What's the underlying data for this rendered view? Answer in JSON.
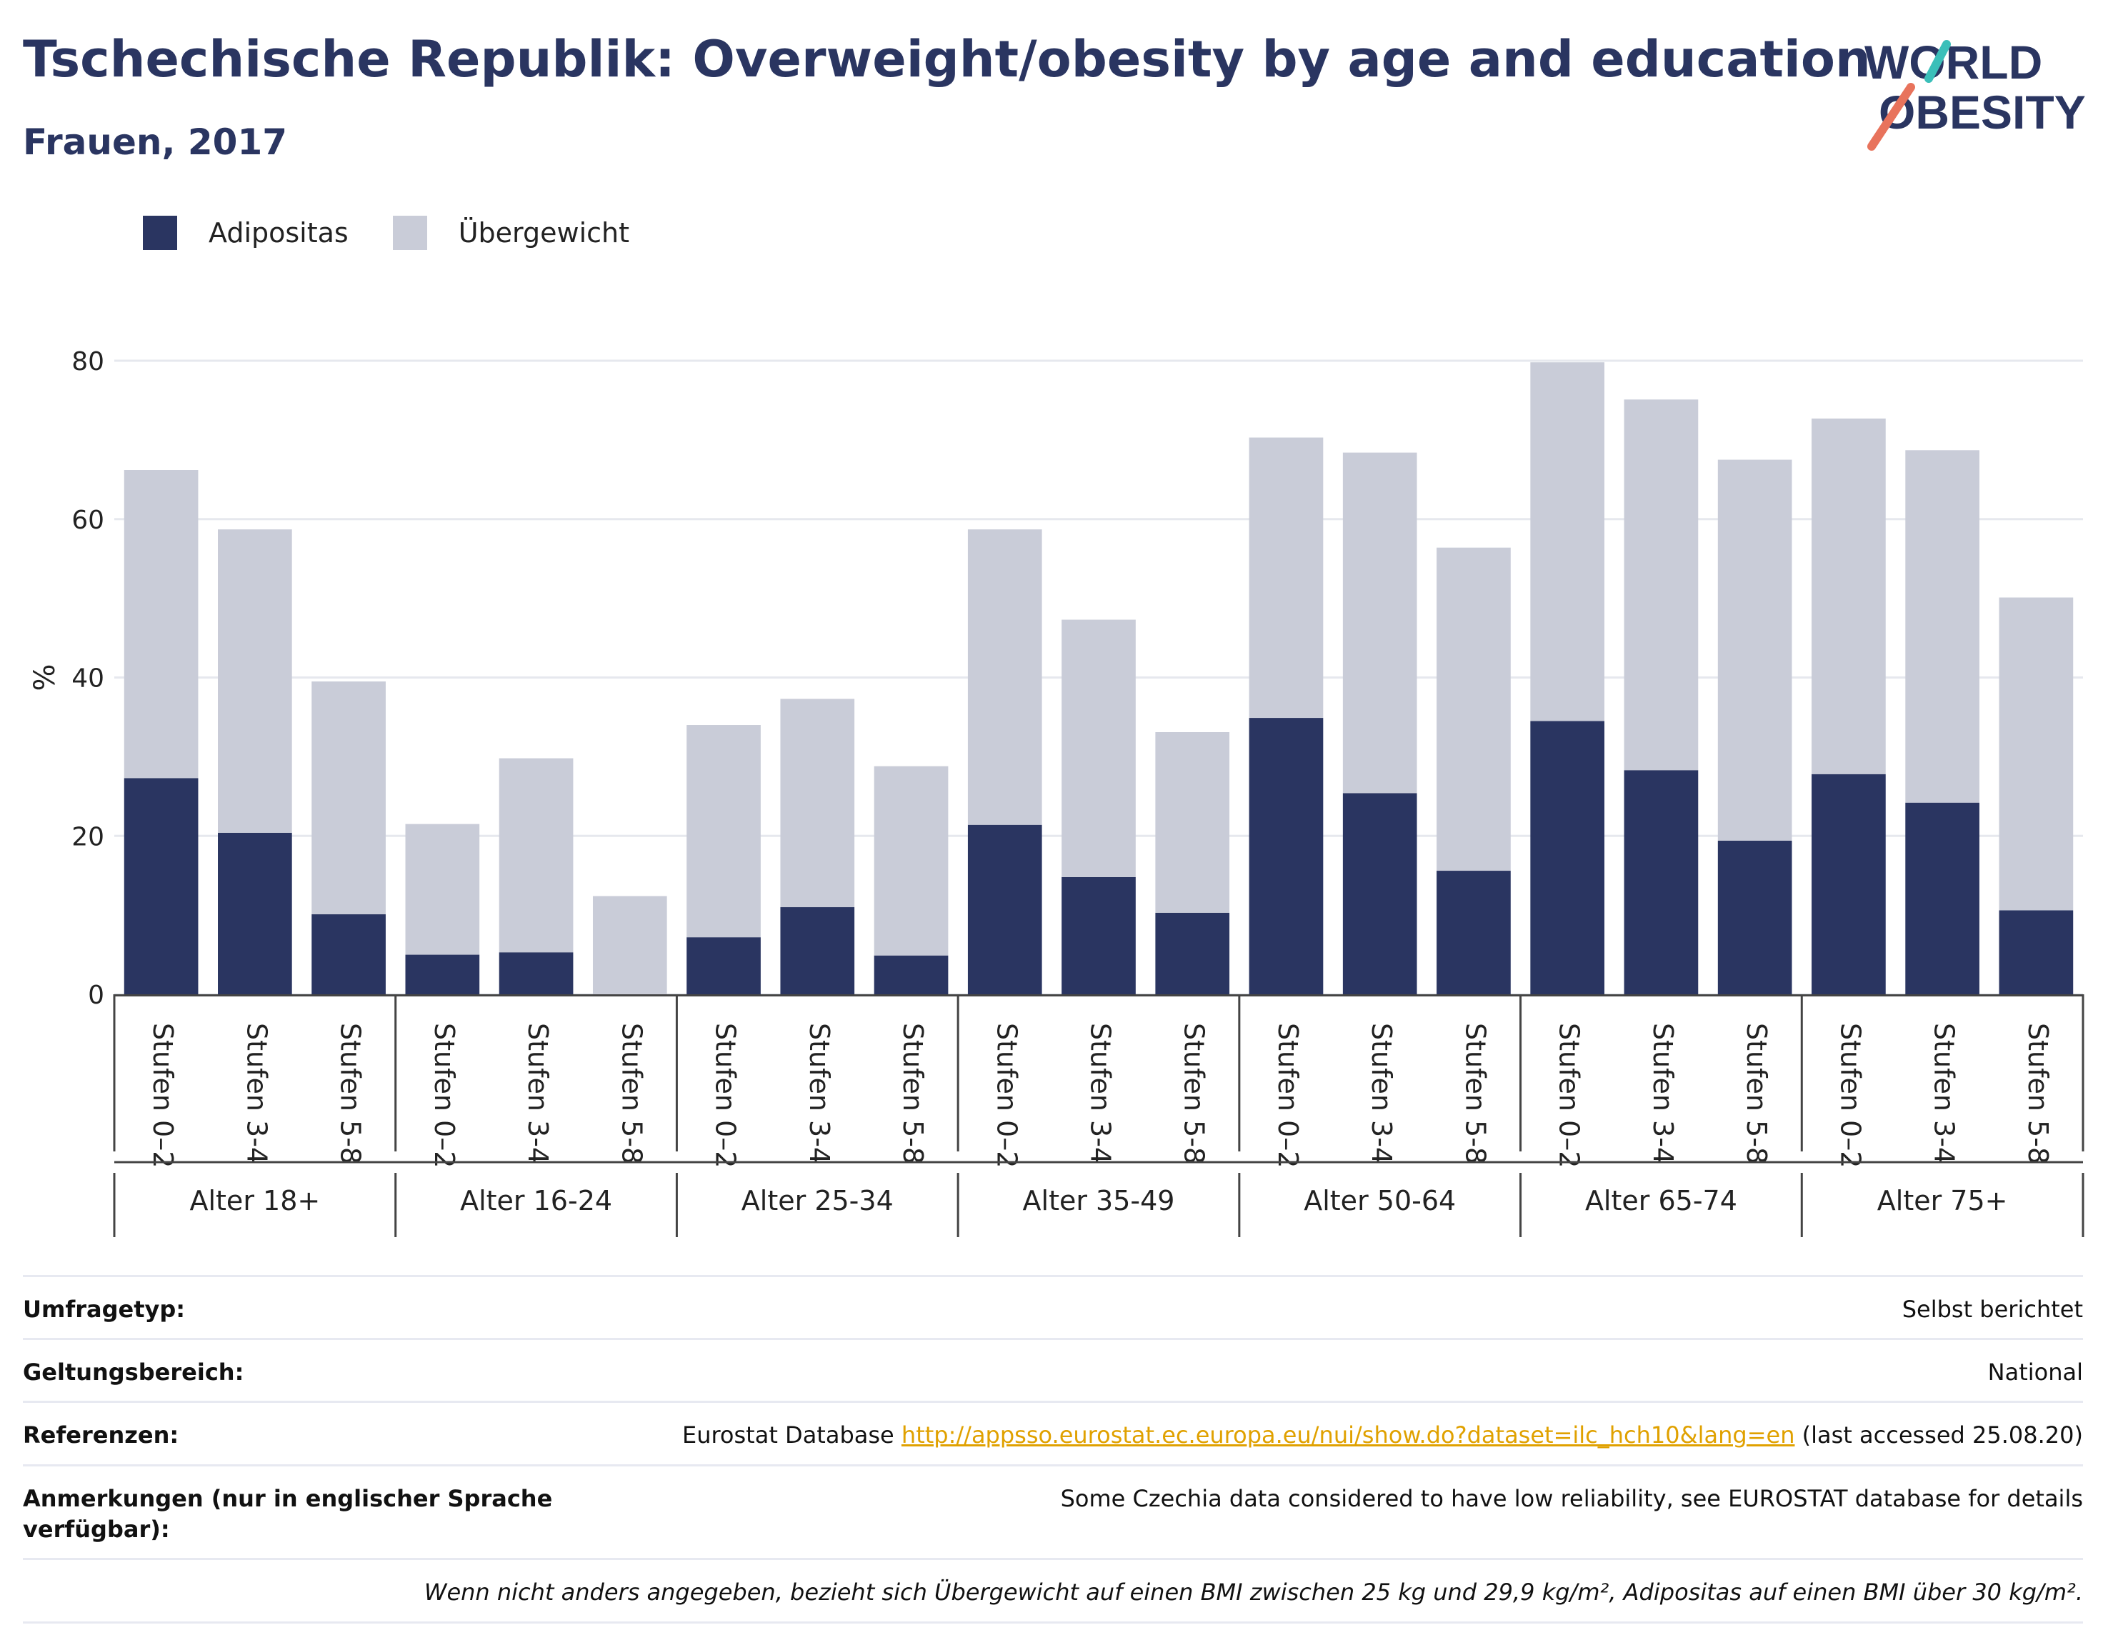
{
  "header": {
    "title": "Tschechische Republik: Overweight/obesity by age and education",
    "subtitle": "Frauen, 2017"
  },
  "logo": {
    "line1": "WORLD",
    "line2": "OBESITY",
    "accent_colors": [
      "#3bbfb9",
      "#e8735c"
    ],
    "text_color": "#2a3561"
  },
  "colors": {
    "obesity": "#2a3561",
    "overweight": "#c9ccd8"
  },
  "chart_data": {
    "type": "bar",
    "stacked": true,
    "ylabel": "%",
    "ylim": [
      0,
      80
    ],
    "yticks": [
      0,
      20,
      40,
      60,
      80
    ],
    "grid": true,
    "legend_position": "top-left",
    "groups": [
      {
        "label": "Alter 18+",
        "categories": [
          "Stufen 0–2",
          "Stufen 3-4",
          "Stufen 5-8"
        ]
      },
      {
        "label": "Alter 16-24",
        "categories": [
          "Stufen 0–2",
          "Stufen 3-4",
          "Stufen 5-8"
        ]
      },
      {
        "label": "Alter 25-34",
        "categories": [
          "Stufen 0–2",
          "Stufen 3-4",
          "Stufen 5-8"
        ]
      },
      {
        "label": "Alter 35-49",
        "categories": [
          "Stufen 0–2",
          "Stufen 3-4",
          "Stufen 5-8"
        ]
      },
      {
        "label": "Alter 50-64",
        "categories": [
          "Stufen 0–2",
          "Stufen 3-4",
          "Stufen 5-8"
        ]
      },
      {
        "label": "Alter 65-74",
        "categories": [
          "Stufen 0–2",
          "Stufen 3-4",
          "Stufen 5-8"
        ]
      },
      {
        "label": "Alter 75+",
        "categories": [
          "Stufen 0–2",
          "Stufen 3-4",
          "Stufen 5-8"
        ]
      }
    ],
    "series": [
      {
        "name": "Adipositas",
        "color": "#2a3561",
        "values": [
          27.3,
          20.4,
          10.1,
          5.0,
          5.3,
          0,
          7.2,
          11.0,
          4.9,
          21.4,
          14.8,
          10.3,
          34.9,
          25.4,
          15.6,
          34.5,
          28.3,
          19.4,
          27.8,
          24.2,
          10.6
        ]
      },
      {
        "name": "Übergewicht",
        "color": "#c9ccd8",
        "values": [
          38.9,
          38.3,
          29.4,
          16.5,
          24.5,
          12.4,
          26.8,
          26.3,
          23.9,
          37.3,
          32.5,
          22.8,
          35.4,
          43.0,
          40.8,
          45.3,
          46.8,
          48.1,
          44.9,
          44.5,
          39.5
        ]
      }
    ]
  },
  "info": {
    "survey_label": "Umfragetyp:",
    "survey_value": "Selbst berichtet",
    "scope_label": "Geltungsbereich:",
    "scope_value": "National",
    "ref_label": "Referenzen:",
    "ref_prefix": "Eurostat Database ",
    "ref_link": "http://appsso.eurostat.ec.europa.eu/nui/show.do?dataset=ilc_hch10&lang=en",
    "ref_suffix": " (last accessed 25.08.20)",
    "notes_label": "Anmerkungen (nur in englischer Sprache verfügbar):",
    "notes_value": "Some Czechia data considered to have low reliability, see EUROSTAT database for details",
    "footnote": "Wenn nicht anders angegeben, bezieht sich Übergewicht auf einen BMI zwischen 25 kg und 29,9 kg/m², Adipositas auf einen BMI über 30 kg/m²."
  }
}
